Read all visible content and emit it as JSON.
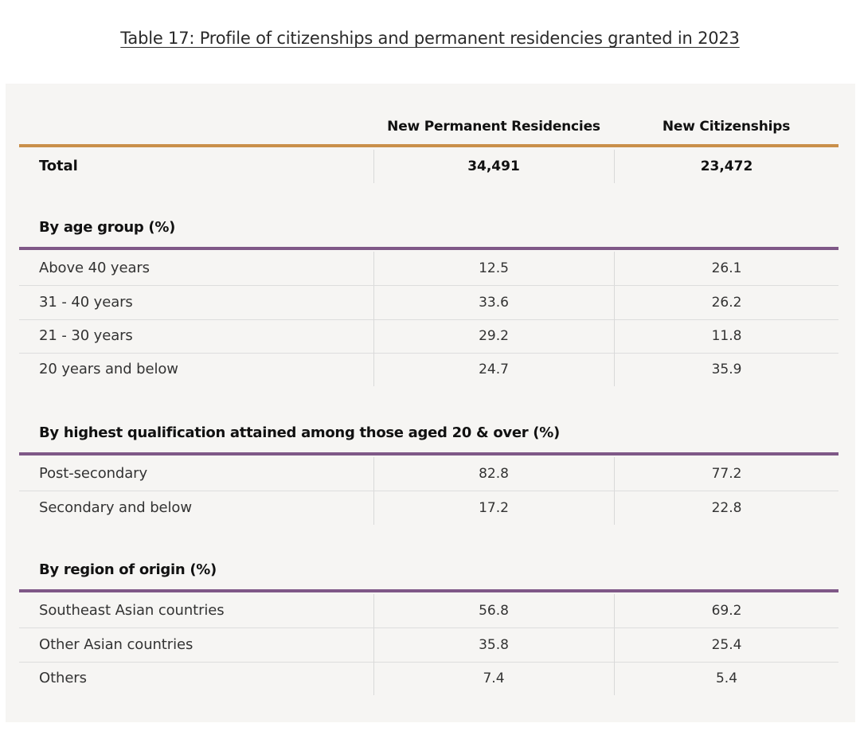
{
  "title": "Table 17: Profile of citizenships and permanent residencies granted in 2023",
  "table": {
    "columns": [
      "New Permanent Residencies",
      "New Citizenships"
    ],
    "total": {
      "label": "Total",
      "values": [
        "34,491",
        "23,472"
      ]
    },
    "sections": [
      {
        "heading": "By age group (%)",
        "rows": [
          {
            "label": "Above 40 years",
            "values": [
              "12.5",
              "26.1"
            ]
          },
          {
            "label": "31 - 40 years",
            "values": [
              "33.6",
              "26.2"
            ]
          },
          {
            "label": "21 - 30 years",
            "values": [
              "29.2",
              "11.8"
            ]
          },
          {
            "label": "20 years and below",
            "values": [
              "24.7",
              "35.9"
            ]
          }
        ]
      },
      {
        "heading": "By highest qualification attained among those aged 20 & over (%)",
        "rows": [
          {
            "label": "Post-secondary",
            "values": [
              "82.8",
              "77.2"
            ]
          },
          {
            "label": "Secondary and below",
            "values": [
              "17.2",
              "22.8"
            ]
          }
        ]
      },
      {
        "heading": "By region of origin (%)",
        "rows": [
          {
            "label": "Southeast Asian countries",
            "values": [
              "56.8",
              "69.2"
            ]
          },
          {
            "label": "Other Asian countries",
            "values": [
              "35.8",
              "25.4"
            ]
          },
          {
            "label": "Others",
            "values": [
              "7.4",
              "5.4"
            ]
          }
        ]
      }
    ]
  },
  "colors": {
    "total_rule": "#c98f4a",
    "section_rule": "#7f5887",
    "card_background": "#f6f5f3"
  }
}
